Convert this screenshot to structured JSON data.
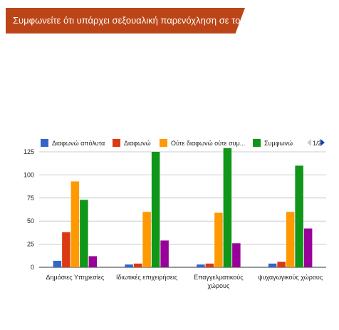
{
  "header": {
    "title": "Συμφωνείτε ότι υπάρχει σεξουαλική παρενόχληση σε τομείς όπως:"
  },
  "legend": {
    "page": "1/2",
    "items": [
      {
        "label": "Διαφωνώ απόλυτα",
        "color": "#3366cc"
      },
      {
        "label": "Διαφωνώ",
        "color": "#dc3912"
      },
      {
        "label": "Ούτε διαφωνώ ούτε συμ...",
        "color": "#ff9900"
      },
      {
        "label": "Συμφωνώ",
        "color": "#109618"
      }
    ]
  },
  "chart_data": {
    "type": "bar",
    "categories": [
      "Δημόσιες Υπηρεσίες",
      "Ιδιωτικές επιχειρήσεις",
      "Επαγγελματικούς χώρους",
      "ψυχαγωγικούς χώρους"
    ],
    "category_lines": [
      [
        "Δημόσιες Υπηρεσίες"
      ],
      [
        "Ιδιωτικές επιχειρήσεις"
      ],
      [
        "Επαγγελματικούς",
        "χώρους"
      ],
      [
        "ψυχαγωγικούς χώρους"
      ]
    ],
    "series": [
      {
        "name": "Διαφωνώ απόλυτα",
        "color": "#3366cc",
        "values": [
          7,
          3,
          3,
          4
        ]
      },
      {
        "name": "Διαφωνώ",
        "color": "#dc3912",
        "values": [
          38,
          4,
          4,
          6
        ]
      },
      {
        "name": "Ούτε διαφωνώ ούτε συμ...",
        "color": "#ff9900",
        "values": [
          93,
          60,
          59,
          60
        ]
      },
      {
        "name": "Συμφωνώ",
        "color": "#109618",
        "values": [
          73,
          125,
          129,
          110
        ]
      },
      {
        "color": "#990099",
        "values": [
          12,
          29,
          26,
          42
        ]
      }
    ],
    "ylim": [
      0,
      125
    ],
    "yticks": [
      0,
      25,
      50,
      75,
      100,
      125
    ],
    "grid": true,
    "legend_position": "top"
  }
}
